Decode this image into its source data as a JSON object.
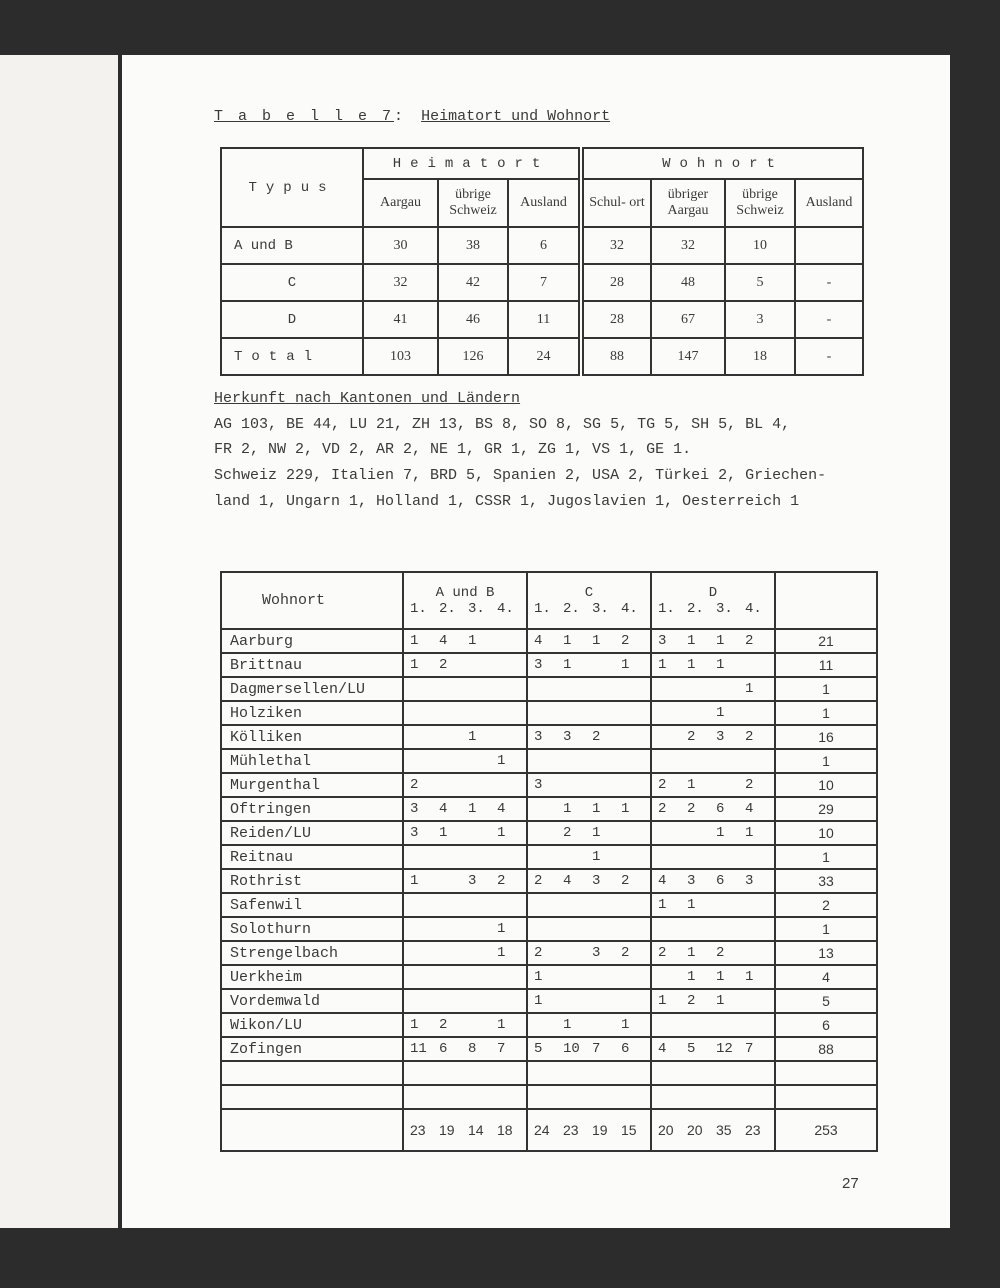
{
  "title": {
    "label": "T a b e l l e  7",
    "colon": ":",
    "text": "Heimatort und Wohnort"
  },
  "table1": {
    "typus_header": "Typus",
    "heimatort_header": "Heimatort",
    "wohnort_header": "Wohnort",
    "columns": [
      "Aargau",
      "übrige Schweiz",
      "Ausland",
      "Schul- ort",
      "übriger Aargau",
      "übrige Schweiz",
      "Ausland"
    ],
    "rows": [
      {
        "typus": "A und B",
        "values": [
          "30",
          "38",
          "6",
          "32",
          "32",
          "10",
          ""
        ]
      },
      {
        "typus": "C",
        "values": [
          "32",
          "42",
          "7",
          "28",
          "48",
          "5",
          "-"
        ]
      },
      {
        "typus": "D",
        "values": [
          "41",
          "46",
          "11",
          "28",
          "67",
          "3",
          "-"
        ]
      },
      {
        "typus": "Total",
        "values": [
          "103",
          "126",
          "24",
          "88",
          "147",
          "18",
          "-"
        ]
      }
    ]
  },
  "herkunft": {
    "heading": "Herkunft nach Kantonen und Ländern",
    "lines": [
      "AG 103, BE 44, LU 21, ZH 13, BS 8, SO 8, SG 5, TG 5, SH 5, BL 4,",
      "FR 2, NW 2, VD 2, AR 2, NE 1, GR 1, ZG 1, VS 1, GE 1.",
      "Schweiz 229, Italien 7, BRD 5, Spanien 2, USA 2, Türkei 2, Griechen-",
      "land 1, Ungarn 1, Holland 1, CSSR 1, Jugoslavien 1, Oesterreich 1"
    ]
  },
  "table2": {
    "wohnort_header": "Wohnort",
    "groups": [
      "A und B",
      "C",
      "D"
    ],
    "subheaders": [
      "1.",
      "2.",
      "3.",
      "4."
    ],
    "rows": [
      {
        "name": "Aarburg",
        "ab": [
          "1",
          "4",
          "1",
          ""
        ],
        "c": [
          "4",
          "1",
          "1",
          "2"
        ],
        "d": [
          "3",
          "1",
          "1",
          "2"
        ],
        "total": "21"
      },
      {
        "name": "Brittnau",
        "ab": [
          "1",
          "2",
          "",
          ""
        ],
        "c": [
          "3",
          "1",
          "",
          "1"
        ],
        "d": [
          "1",
          "1",
          "1",
          ""
        ],
        "total": "11"
      },
      {
        "name": "Dagmersellen/LU",
        "ab": [
          "",
          "",
          "",
          ""
        ],
        "c": [
          "",
          "",
          "",
          ""
        ],
        "d": [
          "",
          "",
          "",
          "1"
        ],
        "total": "1"
      },
      {
        "name": "Holziken",
        "ab": [
          "",
          "",
          "",
          ""
        ],
        "c": [
          "",
          "",
          "",
          ""
        ],
        "d": [
          "",
          "",
          "1",
          ""
        ],
        "total": "1"
      },
      {
        "name": "Kölliken",
        "ab": [
          "",
          "",
          "1",
          ""
        ],
        "c": [
          "3",
          "3",
          "2",
          ""
        ],
        "d": [
          "",
          "2",
          "3",
          "2"
        ],
        "total": "16"
      },
      {
        "name": "Mühlethal",
        "ab": [
          "",
          "",
          "",
          "1"
        ],
        "c": [
          "",
          "",
          "",
          ""
        ],
        "d": [
          "",
          "",
          "",
          ""
        ],
        "total": "1"
      },
      {
        "name": "Murgenthal",
        "ab": [
          "2",
          "",
          "",
          ""
        ],
        "c": [
          "3",
          "",
          "",
          ""
        ],
        "d": [
          "2",
          "1",
          "",
          "2"
        ],
        "total": "10"
      },
      {
        "name": "Oftringen",
        "ab": [
          "3",
          "4",
          "1",
          "4"
        ],
        "c": [
          "",
          "1",
          "1",
          "1"
        ],
        "d": [
          "2",
          "2",
          "6",
          "4"
        ],
        "total": "29"
      },
      {
        "name": "Reiden/LU",
        "ab": [
          "3",
          "1",
          "",
          "1"
        ],
        "c": [
          "",
          "2",
          "1",
          ""
        ],
        "d": [
          "",
          "",
          "1",
          "1"
        ],
        "total": "10"
      },
      {
        "name": "Reitnau",
        "ab": [
          "",
          "",
          "",
          ""
        ],
        "c": [
          "",
          "",
          "1",
          ""
        ],
        "d": [
          "",
          "",
          "",
          ""
        ],
        "total": "1"
      },
      {
        "name": "Rothrist",
        "ab": [
          "1",
          "",
          "3",
          "2"
        ],
        "c": [
          "2",
          "4",
          "3",
          "2"
        ],
        "d": [
          "4",
          "3",
          "6",
          "3"
        ],
        "total": "33"
      },
      {
        "name": "Safenwil",
        "ab": [
          "",
          "",
          "",
          ""
        ],
        "c": [
          "",
          "",
          "",
          ""
        ],
        "d": [
          "1",
          "1",
          "",
          ""
        ],
        "total": "2"
      },
      {
        "name": "Solothurn",
        "ab": [
          "",
          "",
          "",
          "1"
        ],
        "c": [
          "",
          "",
          "",
          ""
        ],
        "d": [
          "",
          "",
          "",
          ""
        ],
        "total": "1"
      },
      {
        "name": "Strengelbach",
        "ab": [
          "",
          "",
          "",
          "1"
        ],
        "c": [
          "2",
          "",
          "3",
          "2"
        ],
        "d": [
          "2",
          "1",
          "2",
          ""
        ],
        "total": "13"
      },
      {
        "name": "Uerkheim",
        "ab": [
          "",
          "",
          "",
          ""
        ],
        "c": [
          "1",
          "",
          "",
          ""
        ],
        "d": [
          "",
          "1",
          "1",
          "1"
        ],
        "total": "4"
      },
      {
        "name": "Vordemwald",
        "ab": [
          "",
          "",
          "",
          ""
        ],
        "c": [
          "1",
          "",
          "",
          ""
        ],
        "d": [
          "1",
          "2",
          "1",
          ""
        ],
        "total": "5"
      },
      {
        "name": "Wikon/LU",
        "ab": [
          "1",
          "2",
          "",
          "1"
        ],
        "c": [
          "",
          "1",
          "",
          "1"
        ],
        "d": [
          "",
          "",
          "",
          ""
        ],
        "total": "6"
      },
      {
        "name": "Zofingen",
        "ab": [
          "11",
          "6",
          "8",
          "7"
        ],
        "c": [
          "5",
          "10",
          "7",
          "6"
        ],
        "d": [
          "4",
          "5",
          "12",
          "7"
        ],
        "total": "88"
      }
    ],
    "totals": {
      "ab": [
        "23",
        "19",
        "14",
        "18"
      ],
      "c": [
        "24",
        "23",
        "19",
        "15"
      ],
      "d": [
        "20",
        "20",
        "35",
        "23"
      ],
      "total": "253"
    }
  },
  "page_number": "27"
}
